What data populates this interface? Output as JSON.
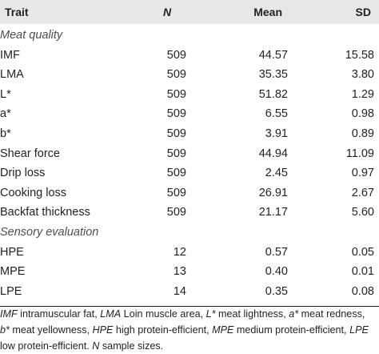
{
  "header": {
    "trait": "Trait",
    "n": "N",
    "mean": "Mean",
    "sd": "SD"
  },
  "sections": [
    {
      "title": "Meat quality",
      "rows": [
        {
          "trait": "IMF",
          "n": "509",
          "mean": "44.57",
          "sd": "15.58"
        },
        {
          "trait": "LMA",
          "n": "509",
          "mean": "35.35",
          "sd": "3.80"
        },
        {
          "trait": "L*",
          "n": "509",
          "mean": "51.82",
          "sd": "1.29"
        },
        {
          "trait": "a*",
          "n": "509",
          "mean": "6.55",
          "sd": "0.98"
        },
        {
          "trait": "b*",
          "n": "509",
          "mean": "3.91",
          "sd": "0.89"
        },
        {
          "trait": "Shear force",
          "n": "509",
          "mean": "44.94",
          "sd": "11.09"
        },
        {
          "trait": "Drip loss",
          "n": "509",
          "mean": "2.45",
          "sd": "0.97"
        },
        {
          "trait": "Cooking loss",
          "n": "509",
          "mean": "26.91",
          "sd": "2.67"
        },
        {
          "trait": "Backfat thickness",
          "n": "509",
          "mean": "21.17",
          "sd": "5.60"
        }
      ]
    },
    {
      "title": "Sensory evaluation",
      "rows": [
        {
          "trait": "HPE",
          "n": "12",
          "mean": "0.57",
          "sd": "0.05"
        },
        {
          "trait": "MPE",
          "n": "13",
          "mean": "0.40",
          "sd": "0.01"
        },
        {
          "trait": "LPE",
          "n": "14",
          "mean": "0.35",
          "sd": "0.08"
        }
      ]
    }
  ],
  "footnote": {
    "parts": [
      {
        "t": "IMF",
        "i": true
      },
      {
        "t": " intramuscular fat, ",
        "i": false
      },
      {
        "t": "LMA",
        "i": true
      },
      {
        "t": " Loin muscle area, ",
        "i": false
      },
      {
        "t": "L*",
        "i": true
      },
      {
        "t": " meat lightness, ",
        "i": false
      },
      {
        "t": "a*",
        "i": true
      },
      {
        "t": " meat redness, ",
        "i": false
      },
      {
        "t": "b*",
        "i": true
      },
      {
        "t": " meat yellowness, ",
        "i": false
      },
      {
        "t": "HPE",
        "i": true
      },
      {
        "t": " high protein-efficient, ",
        "i": false
      },
      {
        "t": "MPE",
        "i": true
      },
      {
        "t": " medium protein-efficient, ",
        "i": false
      },
      {
        "t": "LPE",
        "i": true
      },
      {
        "t": " low protein-efficient. ",
        "i": false
      },
      {
        "t": "N",
        "i": true
      },
      {
        "t": " sample sizes.",
        "i": false
      }
    ]
  }
}
